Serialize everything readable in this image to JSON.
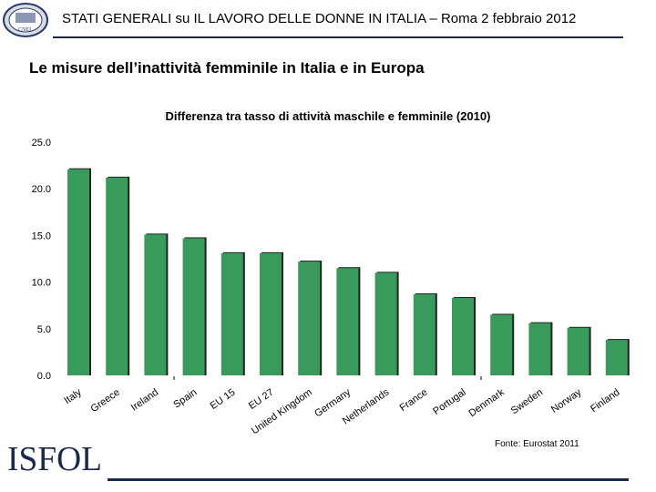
{
  "header": {
    "title": "STATI GENERALI su IL LAVORO DELLE DONNE IN ITALIA – Roma 2 febbraio 2012",
    "seal_text": "CNEL"
  },
  "page_title": "Le misure dell’inattività femminile in Italia e in Europa",
  "source": "Fonte: Eurostat 2011",
  "logo_text": "ISFOL",
  "colors": {
    "bar": "#3a9a5c",
    "rule": "#1c2a4a",
    "shadow": "#222222"
  },
  "chart_data": {
    "type": "bar",
    "title": "Differenza tra tasso di attività maschile e femminile (2010)",
    "categories": [
      "Italy",
      "Greece",
      "Ireland",
      "Spain",
      "EU 15",
      "EU 27",
      "United Kingdom",
      "Germany",
      "Netherlands",
      "France",
      "Portugal",
      "Denmark",
      "Sweden",
      "Norway",
      "Finland"
    ],
    "values": [
      22.1,
      21.2,
      15.1,
      14.7,
      13.1,
      13.1,
      12.2,
      11.5,
      11.0,
      8.7,
      8.3,
      6.5,
      5.6,
      5.1,
      3.8
    ],
    "yticks": [
      "0.0",
      "5.0",
      "10.0",
      "15.0",
      "20.0",
      "25.0"
    ],
    "ylim": [
      0,
      25
    ],
    "xlabel": "",
    "ylabel": ""
  }
}
